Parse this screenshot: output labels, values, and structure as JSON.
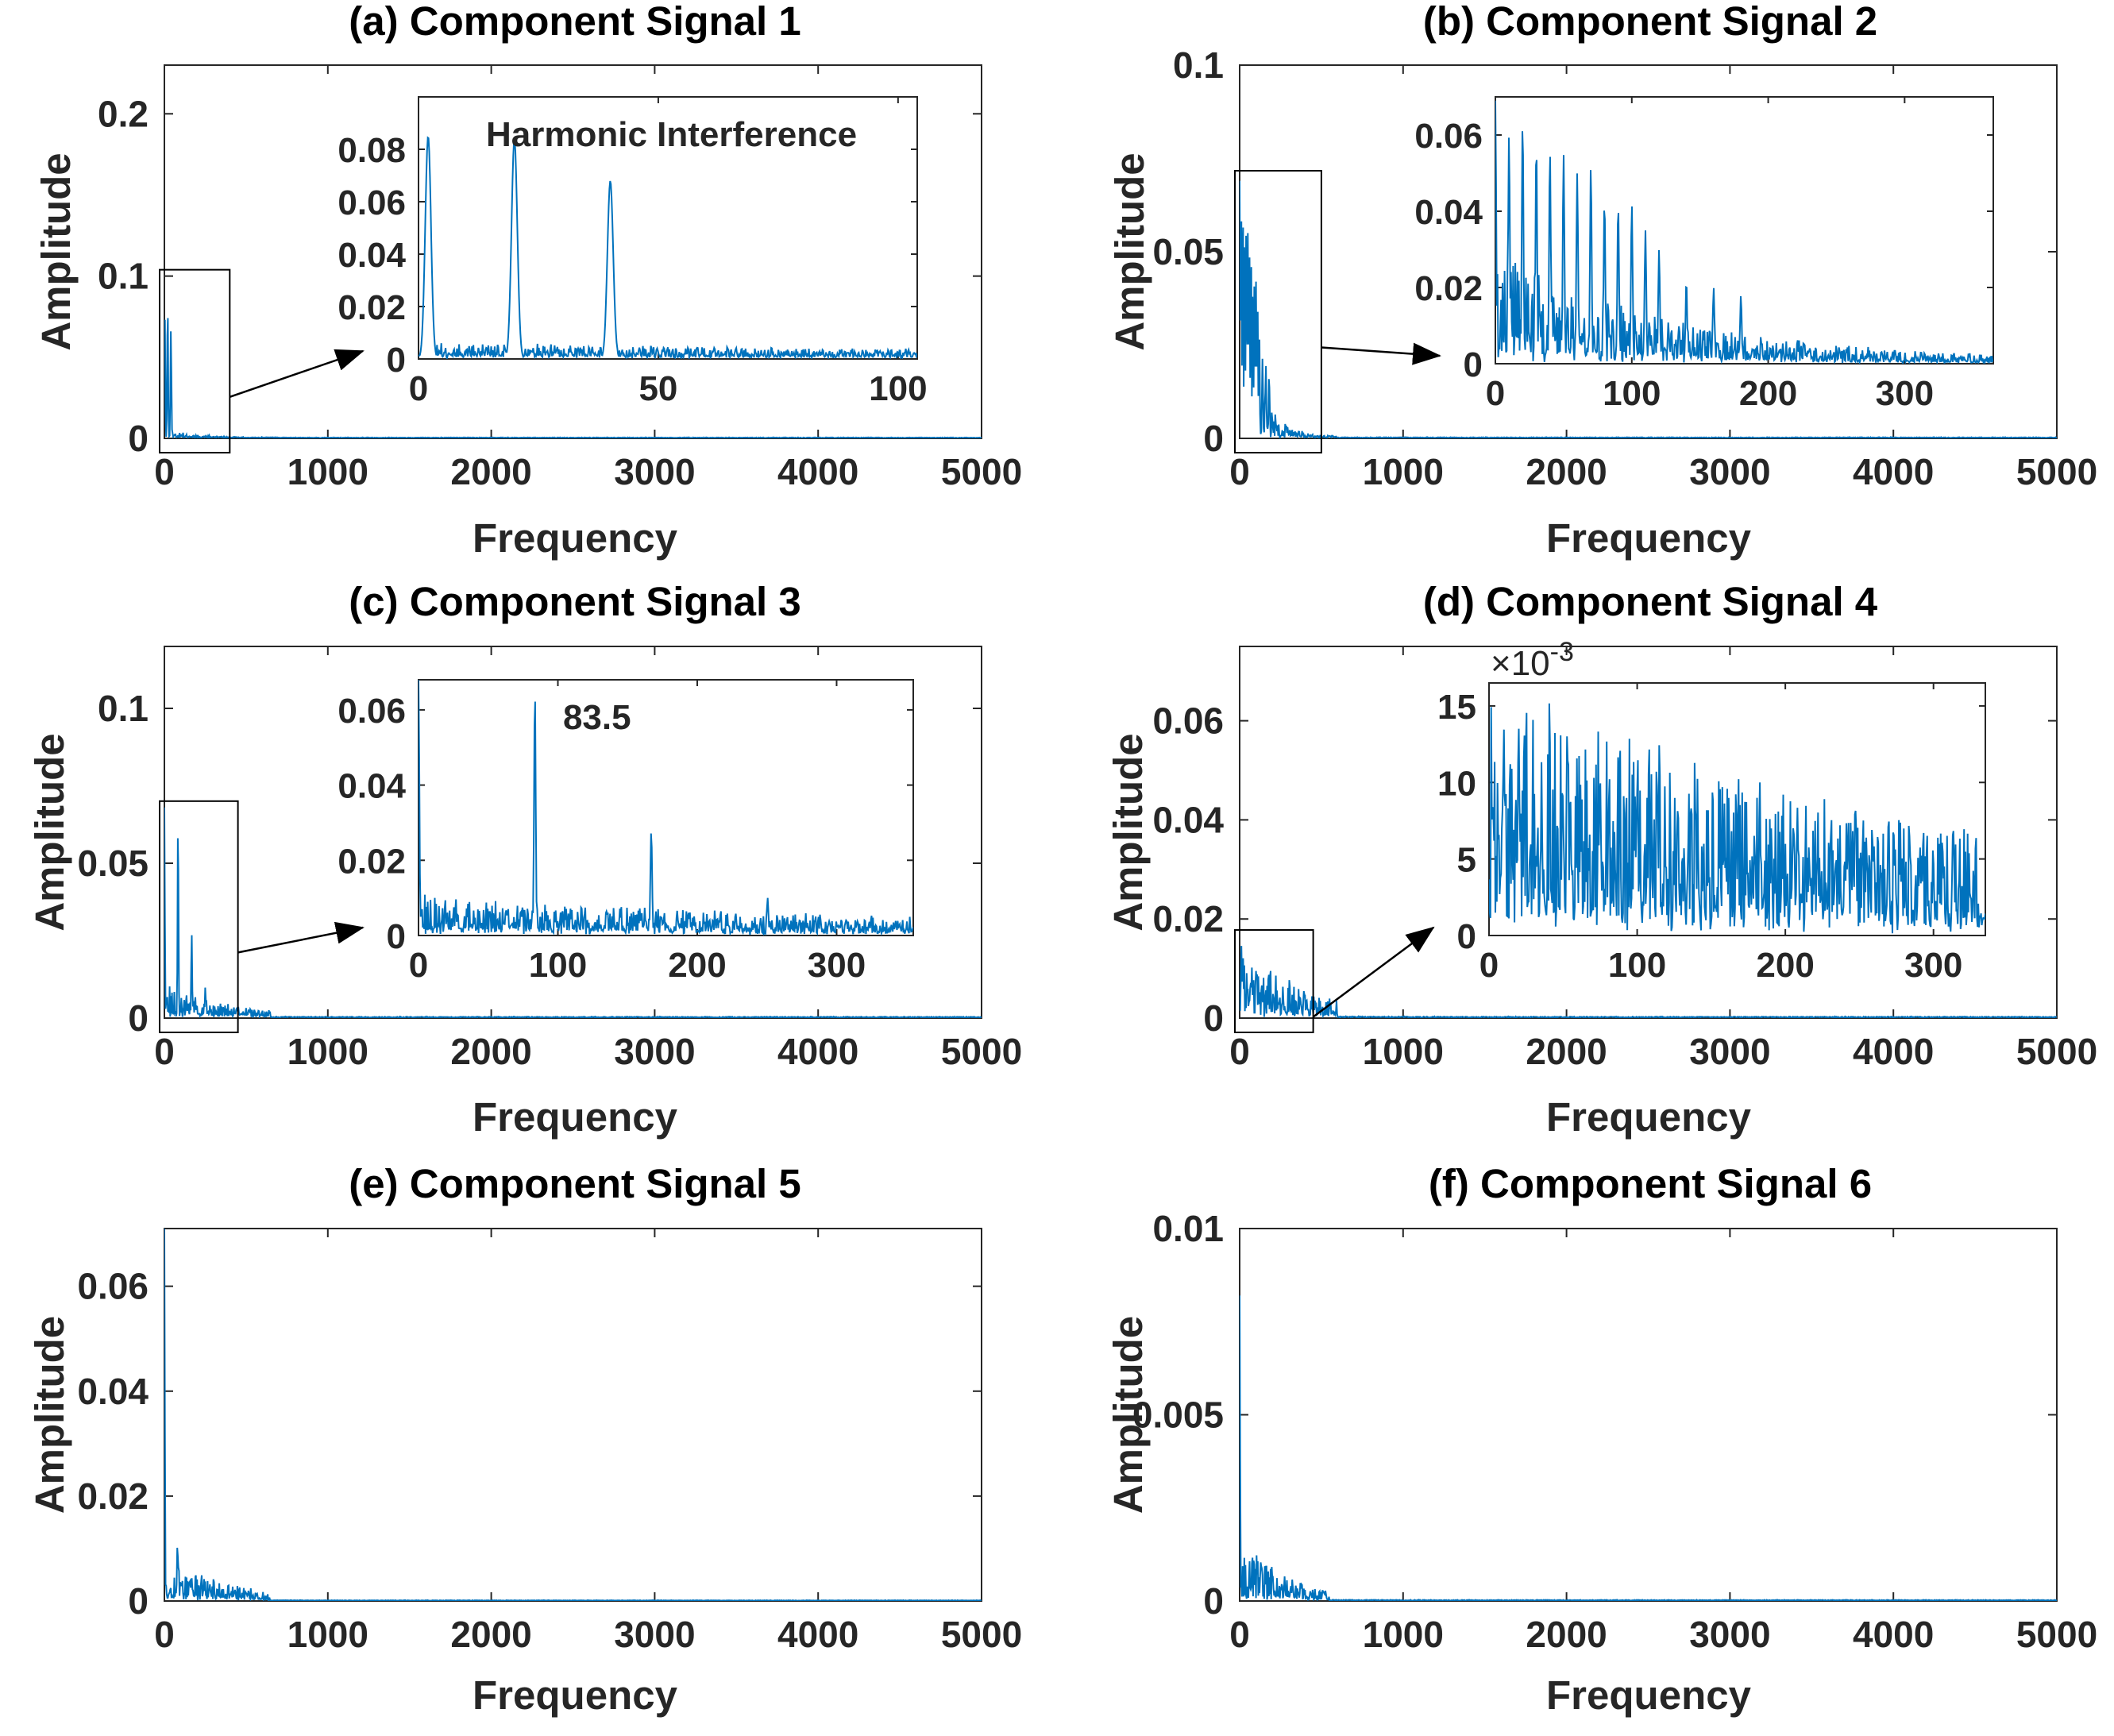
{
  "figure": {
    "line_color": "#0072BD",
    "axis_color": "#262626",
    "background": "#ffffff"
  },
  "chart_data": [
    {
      "id": "a",
      "type": "line",
      "title": "(a) Component Signal 1",
      "xlabel": "Frequency",
      "ylabel": "Amplitude",
      "xlim": [
        0,
        5000
      ],
      "ylim": [
        0,
        0.23
      ],
      "xticks": [
        0,
        1000,
        2000,
        3000,
        4000,
        5000
      ],
      "xtick_labels": [
        "0",
        "1000",
        "2000",
        "3000",
        "4000",
        "5000"
      ],
      "yticks": [
        0,
        0.1,
        0.2
      ],
      "ytick_labels": [
        "0",
        "0.1",
        "0.2"
      ],
      "spectrum": {
        "seed": 11,
        "noise_level": 0.004,
        "decay_hz": 180,
        "noise_cutoff_hz": 700,
        "baseline": 0.0004,
        "peaks": [
          {
            "x": 2,
            "y": 0.085
          },
          {
            "x": 20,
            "y": 0.084
          },
          {
            "x": 40,
            "y": 0.068
          }
        ]
      },
      "inset": {
        "xlim": [
          0,
          104
        ],
        "ylim": [
          0,
          0.1
        ],
        "xticks": [
          0,
          50,
          100
        ],
        "xtick_labels": [
          "0",
          "50",
          "100"
        ],
        "yticks": [
          0,
          0.02,
          0.04,
          0.06,
          0.08
        ],
        "ytick_labels": [
          "0",
          "0.02",
          "0.04",
          "0.06",
          "0.08"
        ],
        "annotation": "Harmonic Interference",
        "zoom_xmax": 400
      }
    },
    {
      "id": "b",
      "type": "line",
      "title": "(b) Component Signal 2",
      "xlabel": "Frequency",
      "ylabel": "Amplitude",
      "xlim": [
        0,
        5000
      ],
      "ylim": [
        0,
        0.1
      ],
      "xticks": [
        0,
        1000,
        2000,
        3000,
        4000,
        5000
      ],
      "xtick_labels": [
        "0",
        "1000",
        "2000",
        "3000",
        "4000",
        "5000"
      ],
      "yticks": [
        0,
        0.05,
        0.1
      ],
      "ytick_labels": [
        "0",
        "0.05",
        "0.1"
      ],
      "spectrum": {
        "seed": 23,
        "noise_level": 0.02,
        "decay_hz": 140,
        "noise_cutoff_hz": 600,
        "baseline": 0.0002,
        "peaks": [
          {
            "x": 0,
            "y": 0.069
          },
          {
            "x": 10,
            "y": 0.06
          },
          {
            "x": 20,
            "y": 0.064
          },
          {
            "x": 30,
            "y": 0.058
          },
          {
            "x": 40,
            "y": 0.056
          },
          {
            "x": 50,
            "y": 0.055
          },
          {
            "x": 60,
            "y": 0.05
          },
          {
            "x": 70,
            "y": 0.052
          },
          {
            "x": 80,
            "y": 0.043
          },
          {
            "x": 90,
            "y": 0.042
          },
          {
            "x": 100,
            "y": 0.042
          },
          {
            "x": 110,
            "y": 0.035
          },
          {
            "x": 120,
            "y": 0.03
          },
          {
            "x": 140,
            "y": 0.022
          },
          {
            "x": 160,
            "y": 0.02
          },
          {
            "x": 180,
            "y": 0.018
          }
        ]
      },
      "inset": {
        "xlim": [
          0,
          365
        ],
        "ylim": [
          0,
          0.07
        ],
        "xticks": [
          0,
          100,
          200,
          300
        ],
        "xtick_labels": [
          "0",
          "100",
          "200",
          "300"
        ],
        "yticks": [
          0,
          0.02,
          0.04,
          0.06
        ],
        "ytick_labels": [
          "0",
          "0.02",
          "0.04",
          "0.06"
        ],
        "zoom_xmax": 500
      }
    },
    {
      "id": "c",
      "type": "line",
      "title": "(c) Component Signal 3",
      "xlabel": "Frequency",
      "ylabel": "Amplitude",
      "xlim": [
        0,
        5000
      ],
      "ylim": [
        0,
        0.12
      ],
      "xticks": [
        0,
        1000,
        2000,
        3000,
        4000,
        5000
      ],
      "xtick_labels": [
        "0",
        "1000",
        "2000",
        "3000",
        "4000",
        "5000"
      ],
      "yticks": [
        0,
        0.05,
        0.1
      ],
      "ytick_labels": [
        "0",
        "0.05",
        "0.1"
      ],
      "spectrum": {
        "seed": 37,
        "noise_level": 0.007,
        "decay_hz": 450,
        "noise_cutoff_hz": 650,
        "baseline": 0.0003,
        "peaks": [
          {
            "x": 0,
            "y": 0.068
          },
          {
            "x": 83.5,
            "y": 0.065
          },
          {
            "x": 167,
            "y": 0.028
          },
          {
            "x": 250.5,
            "y": 0.01
          }
        ]
      },
      "inset": {
        "xlim": [
          0,
          355
        ],
        "ylim": [
          0,
          0.068
        ],
        "xticks": [
          0,
          100,
          200,
          300
        ],
        "xtick_labels": [
          "0",
          "100",
          "200",
          "300"
        ],
        "yticks": [
          0,
          0.02,
          0.04,
          0.06
        ],
        "ytick_labels": [
          "0",
          "0.02",
          "0.04",
          "0.06"
        ],
        "annotation": "83.5",
        "zoom_xmax": 450
      }
    },
    {
      "id": "d",
      "type": "line",
      "title": "(d) Component Signal 4",
      "xlabel": "Frequency",
      "ylabel": "Amplitude",
      "xlim": [
        0,
        5000
      ],
      "ylim": [
        0,
        0.075
      ],
      "xticks": [
        0,
        1000,
        2000,
        3000,
        4000,
        5000
      ],
      "xtick_labels": [
        "0",
        "1000",
        "2000",
        "3000",
        "4000",
        "5000"
      ],
      "yticks": [
        0,
        0.02,
        0.04,
        0.06
      ],
      "ytick_labels": [
        "0",
        "0.02",
        "0.04",
        "0.06"
      ],
      "spectrum": {
        "seed": 41,
        "noise_level": 0.011,
        "decay_hz": 380,
        "noise_cutoff_hz": 600,
        "baseline": 0.0002,
        "peaks": [
          {
            "x": 10,
            "y": 0.0135
          },
          {
            "x": 20,
            "y": 0.0137
          },
          {
            "x": 75,
            "y": 0.0102
          },
          {
            "x": 100,
            "y": 0.0095
          },
          {
            "x": 205,
            "y": 0.0055
          }
        ]
      },
      "inset": {
        "xlim": [
          0,
          335
        ],
        "ylim": [
          0,
          0.0165
        ],
        "xticks": [
          0,
          100,
          200,
          300
        ],
        "xtick_labels": [
          "0",
          "100",
          "200",
          "300"
        ],
        "yticks": [
          0,
          0.005,
          0.01,
          0.015
        ],
        "ytick_labels": [
          "0",
          "5",
          "10",
          "15"
        ],
        "exponent_label": "×10",
        "exponent_power": "-3",
        "zoom_xmax": 450
      }
    },
    {
      "id": "e",
      "type": "line",
      "title": "(e) Component Signal 5",
      "xlabel": "Frequency",
      "ylabel": "Amplitude",
      "xlim": [
        0,
        5000
      ],
      "ylim": [
        0,
        0.071
      ],
      "xticks": [
        0,
        1000,
        2000,
        3000,
        4000,
        5000
      ],
      "xtick_labels": [
        "0",
        "1000",
        "2000",
        "3000",
        "4000",
        "5000"
      ],
      "yticks": [
        0,
        0.02,
        0.04,
        0.06
      ],
      "ytick_labels": [
        "0",
        "0.02",
        "0.04",
        "0.06"
      ],
      "spectrum": {
        "seed": 53,
        "noise_level": 0.0055,
        "decay_hz": 420,
        "noise_cutoff_hz": 650,
        "baseline": 0.0001,
        "peaks": [
          {
            "x": 0,
            "y": 0.071
          },
          {
            "x": 80,
            "y": 0.0115
          }
        ]
      }
    },
    {
      "id": "f",
      "type": "line",
      "title": "(f) Component Signal 6",
      "xlabel": "Frequency",
      "ylabel": "Amplitude",
      "xlim": [
        0,
        5000
      ],
      "ylim": [
        0,
        0.01
      ],
      "xticks": [
        0,
        1000,
        2000,
        3000,
        4000,
        5000
      ],
      "xtick_labels": [
        "0",
        "1000",
        "2000",
        "3000",
        "4000",
        "5000"
      ],
      "yticks": [
        0,
        0.005,
        0.01
      ],
      "ytick_labels": [
        "0",
        "0.005",
        "0.01"
      ],
      "spectrum": {
        "seed": 67,
        "noise_level": 0.0012,
        "decay_hz": 300,
        "noise_cutoff_hz": 550,
        "baseline": 2e-05,
        "peaks": [
          {
            "x": 0,
            "y": 0.0082
          },
          {
            "x": 60,
            "y": 0.0011
          }
        ]
      }
    }
  ]
}
